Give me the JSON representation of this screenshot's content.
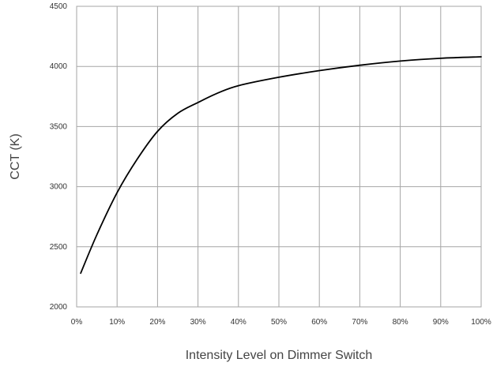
{
  "chart_data": {
    "type": "line",
    "title": "",
    "xlabel": "Intensity Level on Dimmer Switch",
    "ylabel": "CCT (K)",
    "xlim": [
      0,
      100
    ],
    "ylim": [
      2000,
      4500
    ],
    "x_ticks": [
      0,
      10,
      20,
      30,
      40,
      50,
      60,
      70,
      80,
      90,
      100
    ],
    "x_tick_labels": [
      "0%",
      "10%",
      "20%",
      "30%",
      "40%",
      "50%",
      "60%",
      "70%",
      "80%",
      "90%",
      "100%"
    ],
    "y_ticks": [
      2000,
      2500,
      3000,
      3500,
      4000,
      4500
    ],
    "y_tick_labels": [
      "2000",
      "2500",
      "3000",
      "3500",
      "4000",
      "4500"
    ],
    "grid": true,
    "legend": "none",
    "series": [
      {
        "color": "#000000",
        "x": [
          1,
          5,
          10,
          15,
          20,
          25,
          30,
          35,
          40,
          50,
          60,
          70,
          80,
          90,
          100
        ],
        "y": [
          2280,
          2600,
          2950,
          3230,
          3460,
          3610,
          3700,
          3780,
          3840,
          3910,
          3965,
          4010,
          4045,
          4068,
          4080
        ]
      }
    ]
  }
}
